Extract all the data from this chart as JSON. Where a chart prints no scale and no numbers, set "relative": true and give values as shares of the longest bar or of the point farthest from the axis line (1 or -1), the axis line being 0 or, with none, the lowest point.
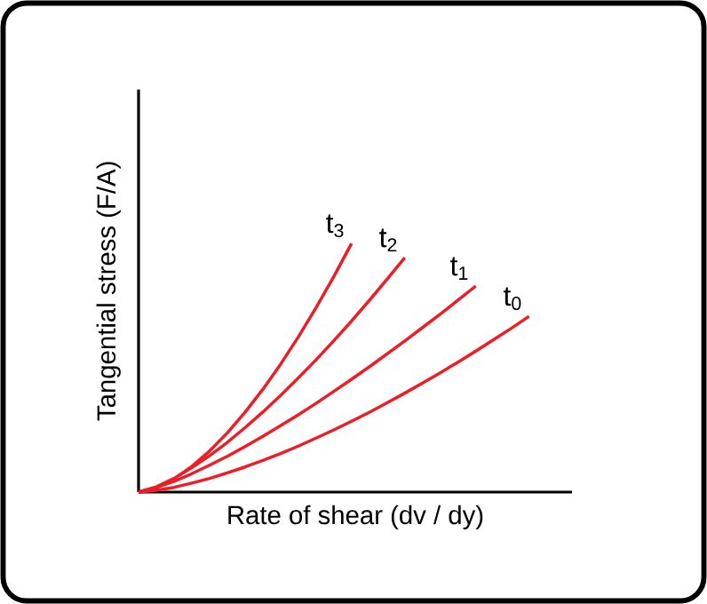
{
  "chart_data": {
    "type": "line",
    "relative": true,
    "xlabel": "Rate of shear (dv / dy)",
    "ylabel": "Tangential stress (F/A)",
    "legend": false,
    "categories": [
      null,
      null,
      null,
      null,
      null,
      null,
      null,
      null,
      null,
      null,
      null,
      null,
      null,
      null,
      null,
      null,
      null,
      null,
      null,
      null,
      null,
      null,
      null
    ],
    "series": [
      {
        "name": "t$_{3}$",
        "color": "#ee1c25",
        "values": [
          0,
          0.017,
          0.053,
          0.103,
          0.165,
          0.238,
          0.321,
          0.413,
          0.514,
          0.624,
          0.742,
          0.867,
          1,
          null,
          null,
          null,
          null,
          null,
          null,
          null,
          null,
          null,
          null
        ]
      },
      {
        "name": "t$_{2}$",
        "color": "#ee1c25",
        "values": [
          0,
          0.021,
          0.055,
          0.098,
          0.146,
          0.2,
          0.259,
          0.322,
          0.389,
          0.459,
          0.532,
          0.609,
          0.688,
          0.771,
          0.856,
          0.943,
          null,
          null,
          null,
          null,
          null,
          null,
          null
        ]
      },
      {
        "name": "t$_{1}$",
        "color": "#ee1c25",
        "values": [
          0,
          0.018,
          0.043,
          0.074,
          0.108,
          0.144,
          0.183,
          0.224,
          0.267,
          0.311,
          0.357,
          0.405,
          0.454,
          0.504,
          0.556,
          0.608,
          0.662,
          0.716,
          0.772,
          0.829,
          null,
          null,
          null
        ]
      },
      {
        "name": "t$_{0}$",
        "color": "#ee1c25",
        "values": [
          0,
          0.007,
          0.019,
          0.036,
          0.055,
          0.077,
          0.101,
          0.127,
          0.155,
          0.185,
          0.217,
          0.25,
          0.285,
          0.321,
          0.359,
          0.398,
          0.439,
          0.48,
          0.523,
          0.567,
          0.613,
          0.659,
          0.707
        ]
      }
    ]
  }
}
